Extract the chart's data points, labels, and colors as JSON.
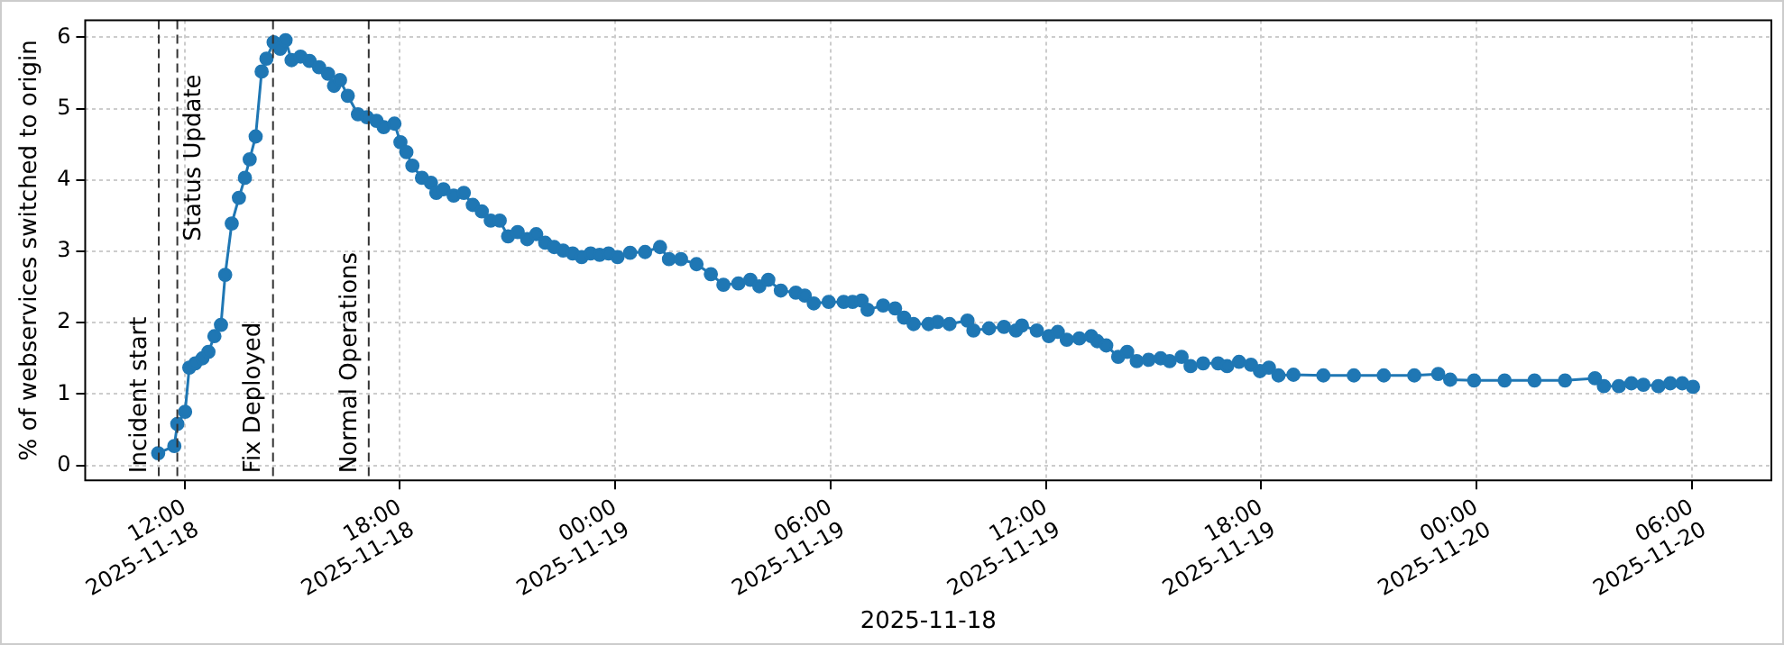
{
  "chart_data": {
    "type": "line",
    "xlabel": "2025-11-18",
    "ylabel": "% of webservices switched to origin",
    "xlim": [
      "2025-11-18T09:14",
      "2025-11-20T08:13"
    ],
    "ylim": [
      -0.21,
      6.24
    ],
    "xticks": [
      {
        "value": "2025-11-18T12:00",
        "label": "12:00\n2025-11-18"
      },
      {
        "value": "2025-11-18T18:00",
        "label": "18:00\n2025-11-18"
      },
      {
        "value": "2025-11-19T00:00",
        "label": "00:00\n2025-11-19"
      },
      {
        "value": "2025-11-19T06:00",
        "label": "06:00\n2025-11-19"
      },
      {
        "value": "2025-11-19T12:00",
        "label": "12:00\n2025-11-19"
      },
      {
        "value": "2025-11-19T18:00",
        "label": "18:00\n2025-11-19"
      },
      {
        "value": "2025-11-20T00:00",
        "label": "00:00\n2025-11-20"
      },
      {
        "value": "2025-11-20T06:00",
        "label": "06:00\n2025-11-20"
      }
    ],
    "yticks": [
      0,
      1,
      2,
      3,
      4,
      5,
      6
    ],
    "grid": true,
    "legend": false,
    "marker": "circle",
    "line_style": "solid",
    "x": [
      "2025-11-18T11:16",
      "2025-11-18T11:43",
      "2025-11-18T11:48",
      "2025-11-18T12:01",
      "2025-11-18T12:08",
      "2025-11-18T12:18",
      "2025-11-18T12:30",
      "2025-11-18T12:40",
      "2025-11-18T12:50",
      "2025-11-18T13:01",
      "2025-11-18T13:08",
      "2025-11-18T13:19",
      "2025-11-18T13:31",
      "2025-11-18T13:41",
      "2025-11-18T13:49",
      "2025-11-18T13:59",
      "2025-11-18T14:09",
      "2025-11-18T14:17",
      "2025-11-18T14:29",
      "2025-11-18T14:40",
      "2025-11-18T14:49",
      "2025-11-18T14:59",
      "2025-11-18T15:14",
      "2025-11-18T15:29",
      "2025-11-18T15:45",
      "2025-11-18T16:00",
      "2025-11-18T16:10",
      "2025-11-18T16:20",
      "2025-11-18T16:33",
      "2025-11-18T16:50",
      "2025-11-18T17:05",
      "2025-11-18T17:21",
      "2025-11-18T17:33",
      "2025-11-18T17:51",
      "2025-11-18T18:01",
      "2025-11-18T18:11",
      "2025-11-18T18:21",
      "2025-11-18T18:37",
      "2025-11-18T18:52",
      "2025-11-18T19:01",
      "2025-11-18T19:13",
      "2025-11-18T19:30",
      "2025-11-18T19:47",
      "2025-11-18T20:02",
      "2025-11-18T20:17",
      "2025-11-18T20:32",
      "2025-11-18T20:47",
      "2025-11-18T21:01",
      "2025-11-18T21:17",
      "2025-11-18T21:33",
      "2025-11-18T21:48",
      "2025-11-18T22:03",
      "2025-11-18T22:18",
      "2025-11-18T22:33",
      "2025-11-18T22:49",
      "2025-11-18T23:04",
      "2025-11-18T23:19",
      "2025-11-18T23:34",
      "2025-11-18T23:49",
      "2025-11-19T00:04",
      "2025-11-19T00:25",
      "2025-11-19T00:50",
      "2025-11-19T01:15",
      "2025-11-19T01:30",
      "2025-11-19T01:50",
      "2025-11-19T02:16",
      "2025-11-19T02:40",
      "2025-11-19T03:01",
      "2025-11-19T03:26",
      "2025-11-19T03:46",
      "2025-11-19T04:01",
      "2025-11-19T04:16",
      "2025-11-19T04:37",
      "2025-11-19T05:02",
      "2025-11-19T05:17",
      "2025-11-19T05:32",
      "2025-11-19T05:57",
      "2025-11-19T06:22",
      "2025-11-19T06:37",
      "2025-11-19T06:52",
      "2025-11-19T07:02",
      "2025-11-19T07:28",
      "2025-11-19T07:48",
      "2025-11-19T08:03",
      "2025-11-19T08:19",
      "2025-11-19T08:44",
      "2025-11-19T08:59",
      "2025-11-19T09:19",
      "2025-11-19T09:49",
      "2025-11-19T09:59",
      "2025-11-19T10:25",
      "2025-11-19T10:50",
      "2025-11-19T11:10",
      "2025-11-19T11:20",
      "2025-11-19T11:45",
      "2025-11-19T12:05",
      "2025-11-19T12:20",
      "2025-11-19T12:35",
      "2025-11-19T12:56",
      "2025-11-19T13:16",
      "2025-11-19T13:26",
      "2025-11-19T13:41",
      "2025-11-19T14:01",
      "2025-11-19T14:16",
      "2025-11-19T14:32",
      "2025-11-19T14:52",
      "2025-11-19T15:12",
      "2025-11-19T15:27",
      "2025-11-19T15:47",
      "2025-11-19T16:02",
      "2025-11-19T16:23",
      "2025-11-19T16:48",
      "2025-11-19T17:03",
      "2025-11-19T17:23",
      "2025-11-19T17:43",
      "2025-11-19T17:58",
      "2025-11-19T18:13",
      "2025-11-19T18:29",
      "2025-11-19T18:54",
      "2025-11-19T19:44",
      "2025-11-19T20:35",
      "2025-11-19T21:25",
      "2025-11-19T22:16",
      "2025-11-19T22:56",
      "2025-11-19T23:16",
      "2025-11-19T23:56",
      "2025-11-20T00:47",
      "2025-11-20T01:37",
      "2025-11-20T02:28",
      "2025-11-20T03:18",
      "2025-11-20T03:33",
      "2025-11-20T03:58",
      "2025-11-20T04:19",
      "2025-11-20T04:39",
      "2025-11-20T05:04",
      "2025-11-20T05:24",
      "2025-11-20T05:44",
      "2025-11-20T06:02"
    ],
    "series": [
      {
        "color": "#1f77b4",
        "values": [
          0.17,
          0.27,
          0.58,
          0.75,
          1.37,
          1.43,
          1.5,
          1.59,
          1.81,
          1.97,
          2.67,
          3.39,
          3.75,
          4.03,
          4.29,
          4.61,
          5.52,
          5.7,
          5.93,
          5.84,
          5.96,
          5.68,
          5.73,
          5.67,
          5.58,
          5.49,
          5.32,
          5.4,
          5.18,
          4.92,
          4.88,
          4.83,
          4.74,
          4.79,
          4.53,
          4.39,
          4.2,
          4.03,
          3.96,
          3.82,
          3.87,
          3.78,
          3.82,
          3.65,
          3.56,
          3.43,
          3.43,
          3.21,
          3.27,
          3.17,
          3.24,
          3.12,
          3.06,
          3.01,
          2.97,
          2.92,
          2.97,
          2.95,
          2.97,
          2.92,
          2.98,
          2.99,
          3.06,
          2.89,
          2.89,
          2.82,
          2.68,
          2.53,
          2.55,
          2.6,
          2.51,
          2.6,
          2.45,
          2.42,
          2.38,
          2.27,
          2.29,
          2.29,
          2.29,
          2.31,
          2.18,
          2.24,
          2.2,
          2.07,
          1.98,
          1.98,
          2.01,
          1.98,
          2.03,
          1.89,
          1.92,
          1.94,
          1.89,
          1.96,
          1.89,
          1.81,
          1.87,
          1.76,
          1.78,
          1.81,
          1.74,
          1.68,
          1.52,
          1.59,
          1.46,
          1.48,
          1.5,
          1.46,
          1.52,
          1.39,
          1.43,
          1.43,
          1.39,
          1.45,
          1.41,
          1.32,
          1.37,
          1.26,
          1.27,
          1.26,
          1.26,
          1.26,
          1.26,
          1.28,
          1.2,
          1.19,
          1.19,
          1.19,
          1.19,
          1.22,
          1.11,
          1.11,
          1.15,
          1.13,
          1.11,
          1.15,
          1.15,
          1.1
        ]
      }
    ],
    "ref_lines": [
      {
        "axis": "x",
        "value": "2025-11-18T11:17",
        "label": "Incident start",
        "color": "#333333",
        "line_style": "dashed"
      },
      {
        "axis": "x",
        "value": "2025-11-18T11:48",
        "label": "Status Update",
        "color": "#333333",
        "line_style": "dashed"
      },
      {
        "axis": "x",
        "value": "2025-11-18T14:28",
        "label": "Fix Deployed",
        "color": "#333333",
        "line_style": "dashed"
      },
      {
        "axis": "x",
        "value": "2025-11-18T17:08",
        "label": "Normal Operations",
        "color": "#333333",
        "line_style": "dashed"
      }
    ]
  }
}
